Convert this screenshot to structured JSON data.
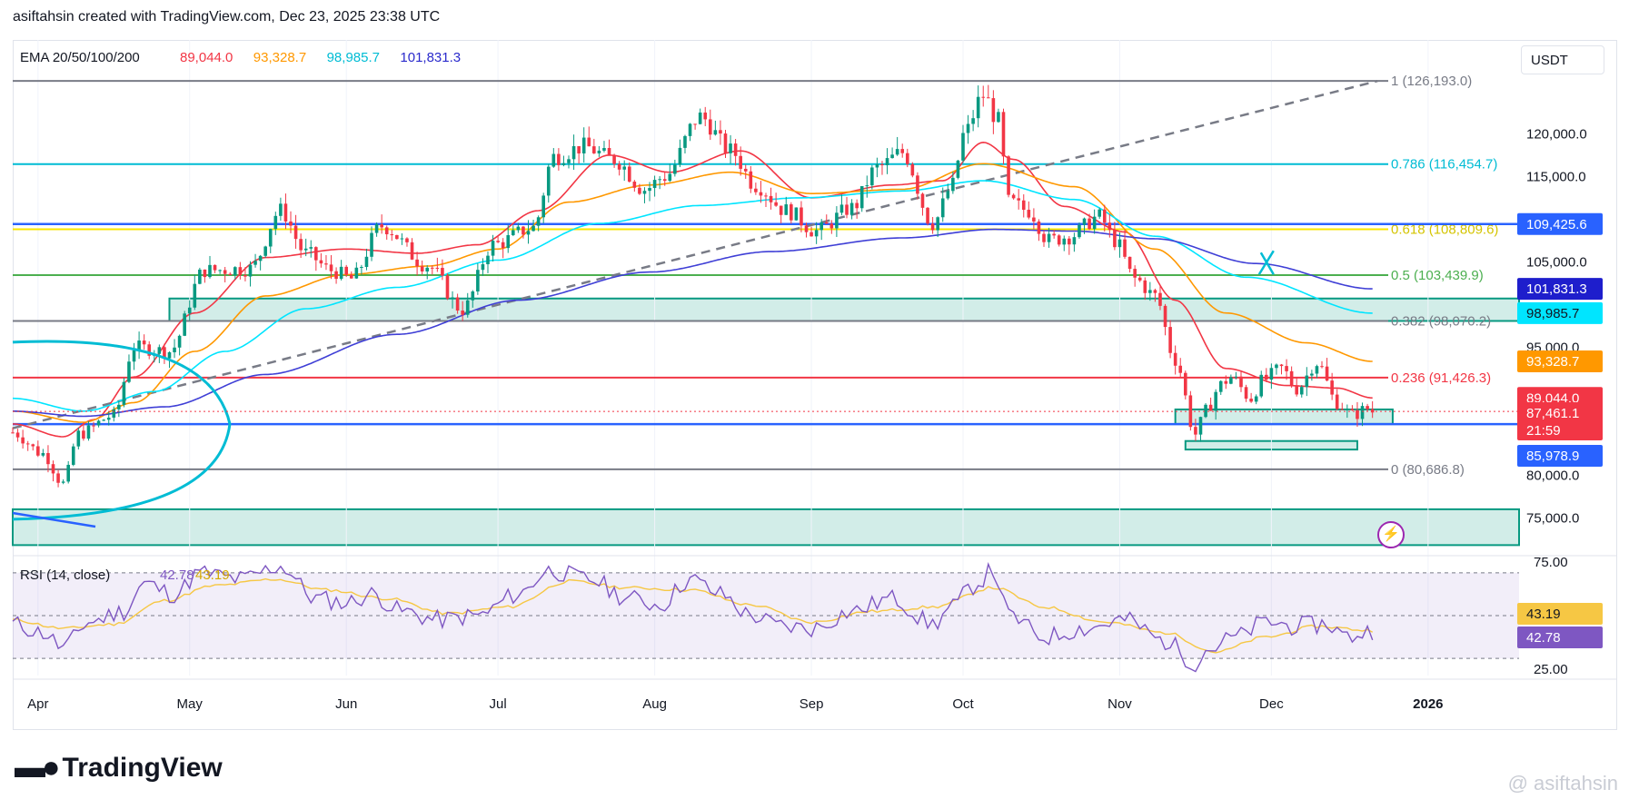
{
  "header": {
    "text": "asiftahsin created with TradingView.com, Dec 23, 2025 23:38 UTC"
  },
  "footer": {
    "logo_text": "TradingView",
    "watermark": "@ asiftahsin"
  },
  "currency_button": "USDT",
  "colors": {
    "up": "#089981",
    "down": "#f23645",
    "ema20": "#f23645",
    "ema50": "#ff9800",
    "ema100": "#00e5ff",
    "ema200": "#3f3fd6",
    "rsi": "#7e57c2",
    "rsi_ma": "#f6c744"
  },
  "chart_data": [
    {
      "type": "line",
      "title": "EMA 20/50/100/200",
      "ema_values": [
        {
          "label": "89,044.0",
          "color": "#f23645"
        },
        {
          "label": "93,328.7",
          "color": "#ff9800"
        },
        {
          "label": "98,985.7",
          "color": "#00bcd4"
        },
        {
          "label": "101,831.3",
          "color": "#2a2acc"
        }
      ],
      "y_ticks": [
        "120,000.0",
        "115,000.0",
        "105,000.0",
        "95,000.0",
        "80,000.0",
        "75,000.0"
      ],
      "y_tick_values": [
        120000,
        115000,
        105000,
        95000,
        80000,
        75000
      ],
      "x_ticks": [
        "Apr",
        "May",
        "Jun",
        "Jul",
        "Aug",
        "Sep",
        "Oct",
        "Nov",
        "Dec",
        "2026"
      ],
      "x_tick_days": [
        5,
        35,
        66,
        96,
        127,
        158,
        188,
        219,
        249,
        280
      ],
      "ylim": [
        71200,
        131000
      ],
      "fib_levels": [
        {
          "ratio": "1",
          "value": 126193.0,
          "label": "1 (126,193.0)",
          "color": "#787b86"
        },
        {
          "ratio": "0.786",
          "value": 116454.7,
          "label": "0.786 (116,454.7)",
          "color": "#00bcd4"
        },
        {
          "ratio": "0.618",
          "value": 108809.6,
          "label": "0.618 (108,809.6)",
          "color": "#f7e600"
        },
        {
          "ratio": "0.5",
          "value": 103439.9,
          "label": "0.5 (103,439.9)",
          "color": "#4caf50"
        },
        {
          "ratio": "0.382",
          "value": 98070.2,
          "label": "0.382 (98,070.2)",
          "color": "#787b86"
        },
        {
          "ratio": "0.236",
          "value": 91426.3,
          "label": "0.236 (91,426.3)",
          "color": "#f23645"
        },
        {
          "ratio": "0",
          "value": 80686.8,
          "label": "0 (80,686.8)",
          "color": "#787b86"
        }
      ],
      "horizontal_lines": [
        {
          "value": 109425.6,
          "color": "#2962ff"
        },
        {
          "value": 85978.9,
          "color": "#2962ff"
        }
      ],
      "price_tags": [
        {
          "label": "109,425.6",
          "value": 109425.6,
          "bg": "#2962ff",
          "fg": "#ffffff"
        },
        {
          "label": "101,831.3",
          "value": 101831.3,
          "bg": "#1e1ecc",
          "fg": "#ffffff"
        },
        {
          "label": "98,985.7",
          "value": 98985.7,
          "bg": "#00e5ff",
          "fg": "#131722"
        },
        {
          "label": "93,328.7",
          "value": 93328.7,
          "bg": "#ff9800",
          "fg": "#ffffff"
        },
        {
          "label": "89,044.0",
          "value": 89044.0,
          "bg": "#f23645",
          "fg": "#ffffff"
        },
        {
          "label": "87,461.1",
          "value": 87461.1,
          "bg": "#f23645",
          "fg": "#ffffff",
          "sub": "21:59"
        },
        {
          "label": "85,978.9",
          "value": 85978.9,
          "bg": "#2962ff",
          "fg": "#ffffff"
        }
      ],
      "zones": [
        {
          "from_day": 0,
          "to_day": 298,
          "low": 71800,
          "high": 76000
        },
        {
          "from_day": 31,
          "to_day": 298,
          "low": 98070,
          "high": 100700
        },
        {
          "from_day": 230,
          "to_day": 273,
          "low": 86000,
          "high": 87700
        },
        {
          "from_day": 232,
          "to_day": 266,
          "low": 83000,
          "high": 84000
        }
      ],
      "ohlc_anchor_close": [
        [
          0,
          85000
        ],
        [
          6,
          82500
        ],
        [
          10,
          79000
        ],
        [
          13,
          84800
        ],
        [
          20,
          87000
        ],
        [
          24,
          95000
        ],
        [
          31,
          94500
        ],
        [
          38,
          104000
        ],
        [
          47,
          104200
        ],
        [
          53,
          111000
        ],
        [
          58,
          106000
        ],
        [
          63,
          104000
        ],
        [
          67,
          103000
        ],
        [
          73,
          109200
        ],
        [
          82,
          104600
        ],
        [
          89,
          99400
        ],
        [
          95,
          107000
        ],
        [
          103,
          109000
        ],
        [
          107,
          117300
        ],
        [
          113,
          118500
        ],
        [
          119,
          117000
        ],
        [
          125,
          113500
        ],
        [
          129,
          115000
        ],
        [
          136,
          122000
        ],
        [
          142,
          118000
        ],
        [
          147,
          114000
        ],
        [
          153,
          111000
        ],
        [
          159,
          108600
        ],
        [
          166,
          111300
        ],
        [
          171,
          116000
        ],
        [
          176,
          117800
        ],
        [
          182,
          109500
        ],
        [
          186,
          114000
        ],
        [
          188,
          119800
        ],
        [
          192,
          124500
        ],
        [
          195,
          121500
        ],
        [
          197,
          112000
        ],
        [
          201,
          111000
        ],
        [
          205,
          107500
        ],
        [
          209,
          108000
        ],
        [
          215,
          110300
        ],
        [
          218,
          107500
        ],
        [
          222,
          103000
        ],
        [
          226,
          101000
        ],
        [
          230,
          93500
        ],
        [
          234,
          84800
        ],
        [
          236,
          87500
        ],
        [
          239,
          90600
        ],
        [
          241,
          91500
        ],
        [
          245,
          89000
        ],
        [
          247,
          91000
        ],
        [
          251,
          92500
        ],
        [
          254,
          90100
        ],
        [
          258,
          93200
        ],
        [
          262,
          88500
        ],
        [
          265,
          87000
        ],
        [
          268,
          87800
        ],
        [
          269,
          87461
        ]
      ],
      "ema_anchors": {
        "ema20": [
          [
            0,
            86000
          ],
          [
            10,
            84500
          ],
          [
            16,
            86500
          ],
          [
            24,
            91500
          ],
          [
            36,
            99000
          ],
          [
            50,
            105500
          ],
          [
            66,
            106500
          ],
          [
            80,
            106000
          ],
          [
            92,
            107000
          ],
          [
            104,
            111000
          ],
          [
            118,
            117500
          ],
          [
            130,
            115500
          ],
          [
            144,
            118000
          ],
          [
            158,
            112500
          ],
          [
            174,
            114000
          ],
          [
            184,
            114500
          ],
          [
            192,
            119000
          ],
          [
            198,
            117000
          ],
          [
            208,
            111500
          ],
          [
            220,
            108500
          ],
          [
            230,
            100500
          ],
          [
            240,
            92500
          ],
          [
            252,
            90500
          ],
          [
            262,
            90200
          ],
          [
            269,
            89044
          ]
        ],
        "ema50": [
          [
            0,
            87500
          ],
          [
            14,
            86200
          ],
          [
            24,
            88500
          ],
          [
            36,
            94500
          ],
          [
            50,
            101000
          ],
          [
            66,
            103500
          ],
          [
            82,
            104500
          ],
          [
            96,
            106500
          ],
          [
            110,
            112000
          ],
          [
            126,
            114000
          ],
          [
            142,
            115500
          ],
          [
            158,
            113000
          ],
          [
            176,
            113500
          ],
          [
            192,
            116500
          ],
          [
            210,
            113800
          ],
          [
            226,
            106500
          ],
          [
            240,
            99000
          ],
          [
            256,
            95500
          ],
          [
            269,
            93329
          ]
        ],
        "ema100": [
          [
            0,
            89000
          ],
          [
            14,
            87500
          ],
          [
            28,
            89800
          ],
          [
            42,
            94500
          ],
          [
            58,
            99500
          ],
          [
            76,
            102000
          ],
          [
            96,
            105200
          ],
          [
            116,
            109500
          ],
          [
            136,
            111600
          ],
          [
            156,
            112500
          ],
          [
            176,
            113300
          ],
          [
            192,
            114500
          ],
          [
            210,
            112300
          ],
          [
            226,
            108000
          ],
          [
            244,
            103200
          ],
          [
            269,
            98986
          ]
        ],
        "ema200": [
          [
            0,
            87500
          ],
          [
            14,
            86900
          ],
          [
            30,
            88000
          ],
          [
            50,
            91800
          ],
          [
            76,
            96500
          ],
          [
            100,
            100500
          ],
          [
            126,
            103800
          ],
          [
            150,
            106200
          ],
          [
            176,
            107800
          ],
          [
            194,
            108800
          ],
          [
            210,
            108600
          ],
          [
            226,
            107700
          ],
          [
            246,
            104800
          ],
          [
            269,
            101831
          ]
        ]
      },
      "trend_line": {
        "from_day": 0,
        "from_value": 85500,
        "to_day": 270,
        "to_value": 126193
      },
      "x_mark": {
        "day": 248,
        "value": 104800
      },
      "volume_profile_ellipse": {
        "center_day": 0,
        "center_value": 86000
      }
    },
    {
      "type": "line",
      "title": "RSI (14, close)",
      "rsi_value_label": "42.78",
      "rsi_ma_label": "43.19",
      "y_ticks": [
        "75.00",
        "25.00"
      ],
      "y_tick_values": [
        75,
        25
      ],
      "ylim": [
        22,
        78
      ],
      "band": [
        30,
        70
      ],
      "midline": 50,
      "tags": [
        {
          "label": "43.19",
          "value": 43.19,
          "bg": "#f6c744",
          "fg": "#131722"
        },
        {
          "label": "42.78",
          "value": 42.78,
          "bg": "#7e57c2",
          "fg": "#ffffff"
        }
      ],
      "rsi_anchors": [
        [
          0,
          46
        ],
        [
          6,
          42
        ],
        [
          10,
          35
        ],
        [
          15,
          47
        ],
        [
          22,
          52
        ],
        [
          26,
          65
        ],
        [
          32,
          60
        ],
        [
          37,
          70
        ],
        [
          45,
          67
        ],
        [
          53,
          73
        ],
        [
          60,
          58
        ],
        [
          66,
          56
        ],
        [
          71,
          60
        ],
        [
          77,
          52
        ],
        [
          84,
          48
        ],
        [
          92,
          50
        ],
        [
          100,
          60
        ],
        [
          106,
          71
        ],
        [
          114,
          67
        ],
        [
          122,
          58
        ],
        [
          128,
          55
        ],
        [
          134,
          67
        ],
        [
          140,
          60
        ],
        [
          146,
          50
        ],
        [
          152,
          45
        ],
        [
          158,
          44
        ],
        [
          166,
          52
        ],
        [
          174,
          58
        ],
        [
          182,
          46
        ],
        [
          186,
          54
        ],
        [
          190,
          64
        ],
        [
          194,
          71
        ],
        [
          197,
          50
        ],
        [
          204,
          40
        ],
        [
          212,
          44
        ],
        [
          220,
          48
        ],
        [
          228,
          38
        ],
        [
          234,
          28
        ],
        [
          236,
          34
        ],
        [
          242,
          40
        ],
        [
          248,
          47
        ],
        [
          254,
          45
        ],
        [
          260,
          46
        ],
        [
          264,
          40
        ],
        [
          269,
          43
        ]
      ],
      "rsi_ma_anchors": [
        [
          0,
          48
        ],
        [
          10,
          44
        ],
        [
          20,
          46
        ],
        [
          30,
          57
        ],
        [
          40,
          64
        ],
        [
          52,
          67
        ],
        [
          62,
          62
        ],
        [
          74,
          58
        ],
        [
          86,
          51
        ],
        [
          98,
          54
        ],
        [
          110,
          66
        ],
        [
          122,
          63
        ],
        [
          134,
          62
        ],
        [
          146,
          55
        ],
        [
          158,
          47
        ],
        [
          170,
          52
        ],
        [
          182,
          54
        ],
        [
          194,
          63
        ],
        [
          204,
          54
        ],
        [
          216,
          47
        ],
        [
          228,
          42
        ],
        [
          238,
          33
        ],
        [
          248,
          40
        ],
        [
          258,
          45
        ],
        [
          269,
          43
        ]
      ]
    }
  ]
}
